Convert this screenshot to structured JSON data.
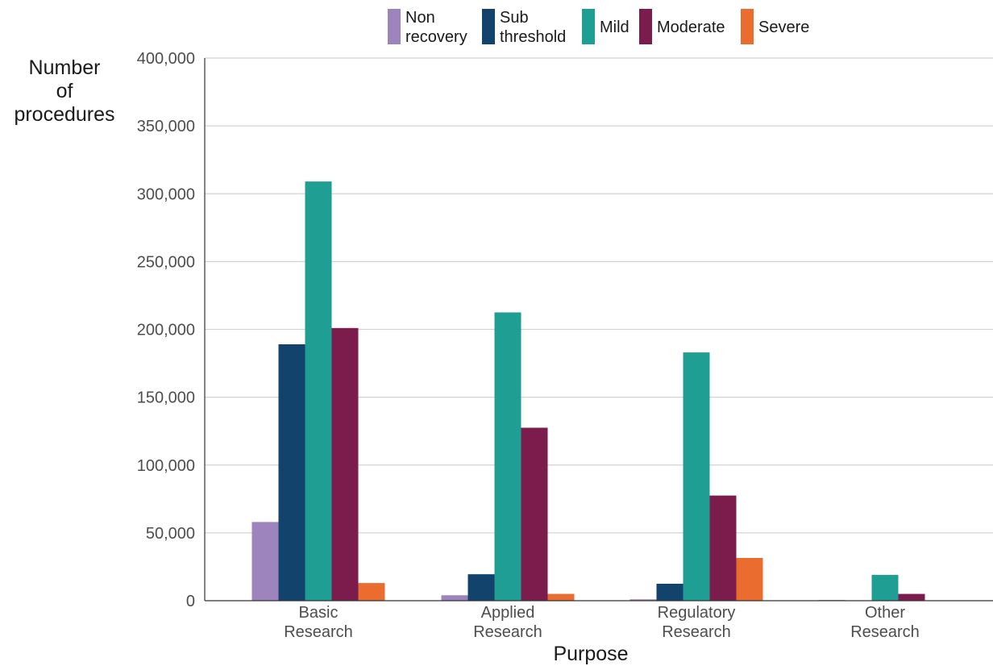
{
  "chart_data": {
    "type": "bar",
    "title": "",
    "xlabel": "Purpose",
    "ylabel_lines": [
      "Number",
      "of",
      "procedures"
    ],
    "categories": [
      [
        "Basic",
        "Research"
      ],
      [
        "Applied",
        "Research"
      ],
      [
        "Regulatory",
        "Research"
      ],
      [
        "Other",
        "Research"
      ]
    ],
    "ylim": [
      0,
      400000
    ],
    "yticks": [
      0,
      50000,
      100000,
      150000,
      200000,
      250000,
      300000,
      350000,
      400000
    ],
    "ytick_labels": [
      "0",
      "50,000",
      "100,000",
      "150,000",
      "200,000",
      "250,000",
      "300,000",
      "350,000",
      "400,000"
    ],
    "grid": true,
    "legend_position": "top",
    "series": [
      {
        "name": [
          "Non",
          "recovery"
        ],
        "color": "#9e84bd",
        "values": [
          58000,
          4000,
          1000,
          500
        ]
      },
      {
        "name": [
          "Sub",
          "threshold"
        ],
        "color": "#12436d",
        "values": [
          189000,
          19500,
          12500,
          0
        ]
      },
      {
        "name": [
          "Mild"
        ],
        "color": "#1f9e93",
        "values": [
          309000,
          212500,
          183000,
          19000
        ]
      },
      {
        "name": [
          "Moderate"
        ],
        "color": "#7b1c4d",
        "values": [
          201000,
          127500,
          77500,
          5000
        ]
      },
      {
        "name": [
          "Severe"
        ],
        "color": "#ea6c2e",
        "values": [
          13000,
          5000,
          31500,
          0
        ]
      }
    ]
  }
}
